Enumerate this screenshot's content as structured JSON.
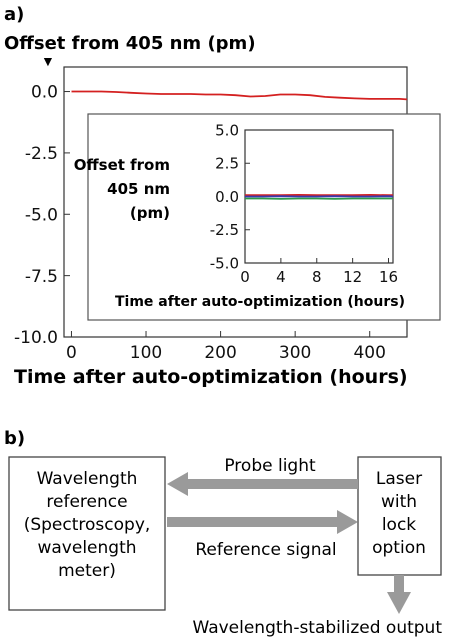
{
  "panel_a_label": "a)",
  "panel_b_label": "b)",
  "chart_data": [
    {
      "type": "line",
      "ylabel": "Offset from 405 nm (pm)",
      "xlabel": "Time after auto-optimization (hours)",
      "xlim": [
        -10,
        450
      ],
      "ylim": [
        -10,
        1
      ],
      "xticks": [
        0,
        100,
        200,
        300,
        400
      ],
      "yticks": [
        0.0,
        -2.5,
        -5.0,
        -7.5,
        -10.0
      ],
      "ytick_labels": [
        "0.0",
        "-2.5",
        "-5.0",
        "-7.5",
        "-10.0"
      ],
      "series": [
        {
          "color": "#d42020",
          "x": [
            0,
            20,
            40,
            60,
            80,
            100,
            120,
            140,
            160,
            180,
            200,
            220,
            240,
            260,
            280,
            300,
            320,
            340,
            360,
            380,
            400,
            420,
            440,
            450
          ],
          "y": [
            0.0,
            0.0,
            0.0,
            -0.02,
            -0.05,
            -0.08,
            -0.1,
            -0.1,
            -0.1,
            -0.12,
            -0.12,
            -0.15,
            -0.2,
            -0.18,
            -0.12,
            -0.12,
            -0.15,
            -0.22,
            -0.25,
            -0.28,
            -0.3,
            -0.3,
            -0.3,
            -0.32
          ]
        }
      ]
    },
    {
      "type": "line",
      "ylabel": "Offset from 405 nm (pm)",
      "ylabel_lines": [
        "Offset from",
        "405 nm",
        "(pm)"
      ],
      "xlabel": "Time after auto-optimization (hours)",
      "xlim": [
        0,
        16.5
      ],
      "ylim": [
        -5,
        5
      ],
      "xticks": [
        0,
        4,
        8,
        12,
        16
      ],
      "yticks": [
        5.0,
        2.5,
        0.0,
        -2.5,
        -5.0
      ],
      "ytick_labels": [
        "5.0",
        "2.5",
        "0.0",
        "-2.5",
        "-5.0"
      ],
      "series": [
        {
          "color": "#d42020",
          "x": [
            0,
            2,
            4,
            6,
            8,
            10,
            12,
            14,
            16,
            16.5
          ],
          "y": [
            0.1,
            0.1,
            0.1,
            0.12,
            0.1,
            0.1,
            0.1,
            0.12,
            0.1,
            0.1
          ]
        },
        {
          "color": "#3a3ab0",
          "x": [
            0,
            2,
            4,
            6,
            8,
            10,
            12,
            14,
            16,
            16.5
          ],
          "y": [
            0.0,
            0.0,
            0.02,
            0.0,
            0.0,
            0.02,
            0.0,
            0.0,
            0.02,
            0.0
          ]
        },
        {
          "color": "#2c9a4a",
          "x": [
            0,
            2,
            4,
            6,
            8,
            10,
            12,
            14,
            16,
            16.5
          ],
          "y": [
            -0.15,
            -0.15,
            -0.18,
            -0.15,
            -0.15,
            -0.18,
            -0.15,
            -0.15,
            -0.15,
            -0.15
          ]
        }
      ]
    }
  ],
  "diagram": {
    "reference_box": [
      "Wavelength",
      "reference",
      "(Spectroscopy,",
      "wavelength",
      "meter)"
    ],
    "laser_box": [
      "Laser",
      "with",
      "lock",
      "option"
    ],
    "probe_label": "Probe light",
    "reference_signal_label": "Reference signal",
    "output_label": "Wavelength-stabilized output",
    "arrow_color": "#9a9a9a"
  }
}
